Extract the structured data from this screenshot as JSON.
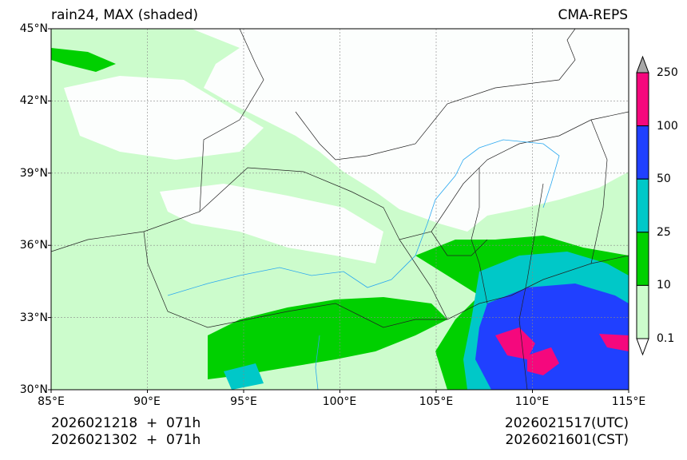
{
  "header": {
    "title_left": "rain24, MAX (shaded)",
    "title_right": "CMA-REPS"
  },
  "axes": {
    "lat_labels": [
      "45°N",
      "42°N",
      "39°N",
      "36°N",
      "33°N",
      "30°N"
    ],
    "lon_labels": [
      "85°E",
      "90°E",
      "95°E",
      "100°E",
      "105°E",
      "110°E",
      "115°E"
    ],
    "lat_values": [
      45,
      42,
      39,
      36,
      33,
      30
    ],
    "lon_values": [
      85,
      90,
      95,
      100,
      105,
      110,
      115
    ]
  },
  "colorbar": {
    "labels": [
      "250",
      "100",
      "50",
      "25",
      "10",
      "0.1"
    ],
    "colors": [
      "#f5087d",
      "#2040ff",
      "#00c8c8",
      "#00d000",
      "#ccfccc"
    ],
    "over_color": "#a8a8a8",
    "under_color": "#ffffff"
  },
  "footer": {
    "init_utc": "2026021218  +  071h",
    "init_cst": "2026021302  +  071h",
    "valid_utc": "2026021517(UTC)",
    "valid_cst": "2026021601(CST)"
  }
}
